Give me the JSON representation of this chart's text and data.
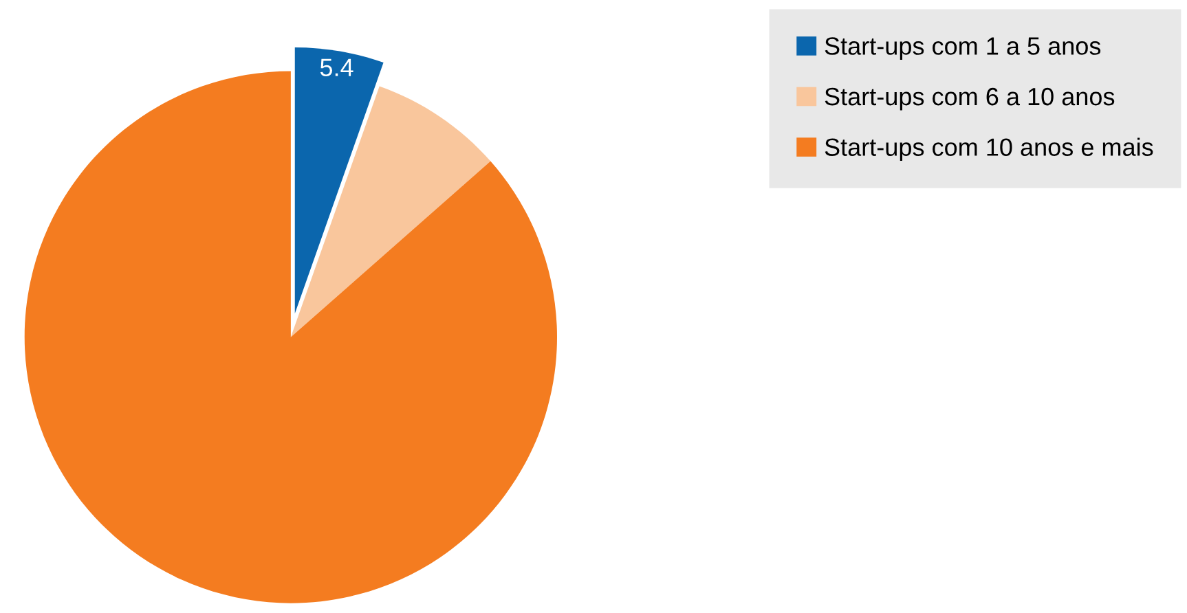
{
  "chart_data": {
    "type": "pie",
    "categories": [
      "Start-ups com 1 a 5 anos",
      "Start-ups com 6 a 10 anos",
      "Start-ups com 10 anos e mais"
    ],
    "values": [
      5.4,
      8.1,
      86.5
    ],
    "colors": [
      "#0b66ad",
      "#f9c69c",
      "#f47c20"
    ],
    "value_labels": [
      "5.4",
      null,
      null
    ],
    "legend": "top right"
  }
}
